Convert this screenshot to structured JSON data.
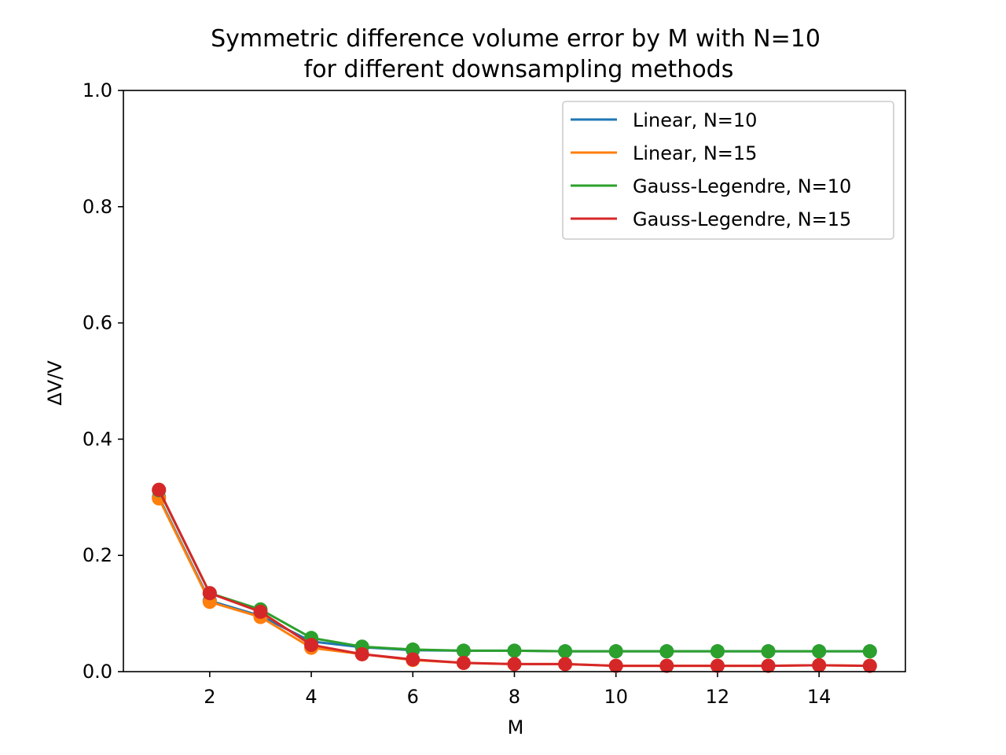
{
  "chart_data": {
    "type": "line",
    "title": "Symmetric difference volume error by M with N=10\nfor different downsampling methods",
    "xlabel": "M",
    "ylabel": "ΔV/V",
    "ylim": [
      0,
      1.0
    ],
    "xlim": [
      0.3,
      15.7
    ],
    "yticks": [
      "0.0",
      "0.2",
      "0.4",
      "0.6",
      "0.8",
      "1.0"
    ],
    "xticks": [
      "2",
      "4",
      "6",
      "8",
      "10",
      "12",
      "14"
    ],
    "grid": false,
    "legend_position": "upper right",
    "markers": true,
    "x": [
      1,
      2,
      3,
      4,
      5,
      6,
      7,
      8,
      9,
      10,
      11,
      12,
      13,
      14,
      15
    ],
    "series": [
      {
        "name": "Linear, N=10",
        "color": "#1f77b4",
        "values": [
          0.3,
          0.122,
          0.096,
          0.052,
          0.042,
          0.037,
          0.036,
          0.036,
          0.035,
          0.035,
          0.035,
          0.035,
          0.035,
          0.035,
          0.035
        ]
      },
      {
        "name": "Linear, N=15",
        "color": "#ff7f0e",
        "values": [
          0.298,
          0.12,
          0.094,
          0.041,
          0.03,
          0.02,
          0.015,
          0.013,
          0.013,
          0.01,
          0.01,
          0.01,
          0.01,
          0.011,
          0.01
        ]
      },
      {
        "name": "Gauss-Legendre, N=10",
        "color": "#2ca02c",
        "values": [
          0.312,
          0.135,
          0.107,
          0.058,
          0.043,
          0.038,
          0.036,
          0.036,
          0.035,
          0.035,
          0.035,
          0.035,
          0.035,
          0.035,
          0.035
        ]
      },
      {
        "name": "Gauss-Legendre, N=15",
        "color": "#d62728",
        "values": [
          0.313,
          0.135,
          0.103,
          0.046,
          0.03,
          0.021,
          0.015,
          0.013,
          0.013,
          0.01,
          0.01,
          0.01,
          0.01,
          0.011,
          0.01
        ]
      }
    ]
  }
}
